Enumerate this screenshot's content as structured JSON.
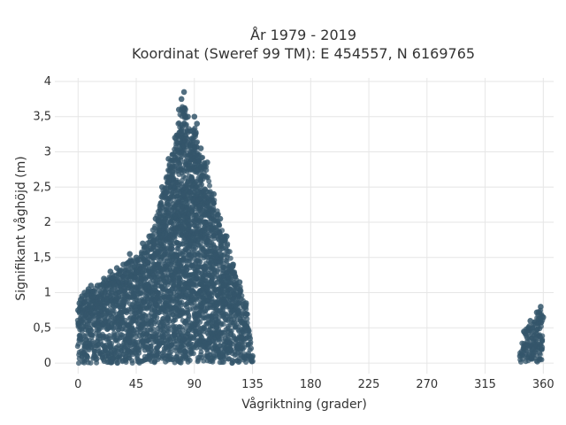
{
  "chart_data": {
    "type": "scatter",
    "title_line1": "År 1979 - 2019",
    "title_line2": "Koordinat (Sweref 99 TM): E 454557, N 6169765",
    "xlabel": "Vågriktning (grader)",
    "ylabel": "Signifikant våghöjd (m)",
    "xlim": [
      -18,
      368
    ],
    "ylim": [
      -0.15,
      4.05
    ],
    "xticks": [
      0,
      45,
      90,
      135,
      180,
      225,
      270,
      315,
      360
    ],
    "xtick_labels": [
      "0",
      "45",
      "90",
      "135",
      "180",
      "225",
      "270",
      "315",
      "360"
    ],
    "yticks": [
      0,
      0.5,
      1,
      1.5,
      2,
      2.5,
      3,
      3.5,
      4
    ],
    "ytick_labels": [
      "0",
      "0,5",
      "1",
      "1,5",
      "2",
      "2,5",
      "3",
      "3,5",
      "4"
    ],
    "grid": true,
    "marker_color": "#34566b",
    "series": [
      {
        "x": [
          0,
          1,
          2,
          3,
          5,
          8,
          10,
          15,
          20,
          25,
          30,
          35,
          40,
          45,
          50,
          55,
          60,
          65,
          70,
          75,
          78,
          80,
          82,
          85,
          88,
          90,
          92,
          95,
          100,
          105,
          110,
          115,
          120,
          125,
          130,
          133,
          135,
          342,
          345,
          350,
          355,
          358,
          360
        ],
        "y": [
          0.75,
          0.85,
          0.9,
          0.95,
          1.0,
          1.05,
          1.1,
          1.1,
          1.2,
          1.3,
          1.35,
          1.4,
          1.55,
          1.5,
          1.7,
          1.8,
          2.05,
          2.5,
          2.9,
          3.2,
          3.6,
          3.75,
          3.85,
          3.5,
          3.3,
          3.5,
          3.4,
          3.05,
          2.85,
          2.4,
          2.05,
          1.8,
          1.4,
          1.15,
          0.85,
          0.35,
          0.1,
          0.1,
          0.45,
          0.6,
          0.72,
          0.8,
          0.65
        ]
      }
    ]
  }
}
